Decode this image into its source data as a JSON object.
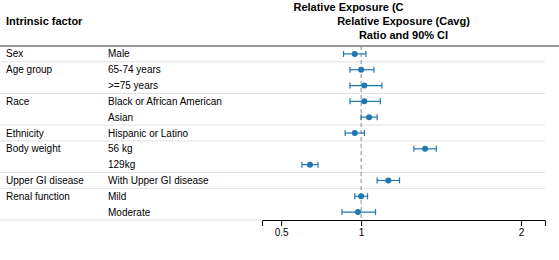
{
  "chart_data": {
    "type": "forest",
    "title": "Relative Exposure (Cavg)",
    "subtitle": "Ratio and 90% CI",
    "ylabel": "Intrinsic factor",
    "annotations": [
      {
        "text": "Relative Exposure (C"
      }
    ],
    "groups": [
      "Sex",
      "Age group",
      null,
      "Race",
      null,
      "Ethnicity",
      "Body weight",
      null,
      "Upper GI disease",
      "Renal function",
      null
    ],
    "categories": [
      "Male",
      "65-74 years",
      ">=75 years",
      "Black or African American",
      "Asian",
      "Hispanic or Latino",
      "56 kg",
      "129kg",
      "With Upper GI disease",
      "Mild",
      "Moderate"
    ],
    "values": [
      0.96,
      1.0,
      1.02,
      1.02,
      1.05,
      0.96,
      1.4,
      0.68,
      1.17,
      1.0,
      0.98
    ],
    "lo": [
      0.89,
      0.93,
      0.93,
      0.93,
      1.0,
      0.9,
      1.33,
      0.63,
      1.1,
      0.96,
      0.88
    ],
    "hi": [
      1.03,
      1.08,
      1.13,
      1.12,
      1.1,
      1.02,
      1.47,
      0.73,
      1.24,
      1.04,
      1.09
    ],
    "xlim": [
      0.38,
      2.15
    ],
    "xticks": [
      0.5,
      1,
      2
    ],
    "reference_line": 1,
    "grid": false
  }
}
